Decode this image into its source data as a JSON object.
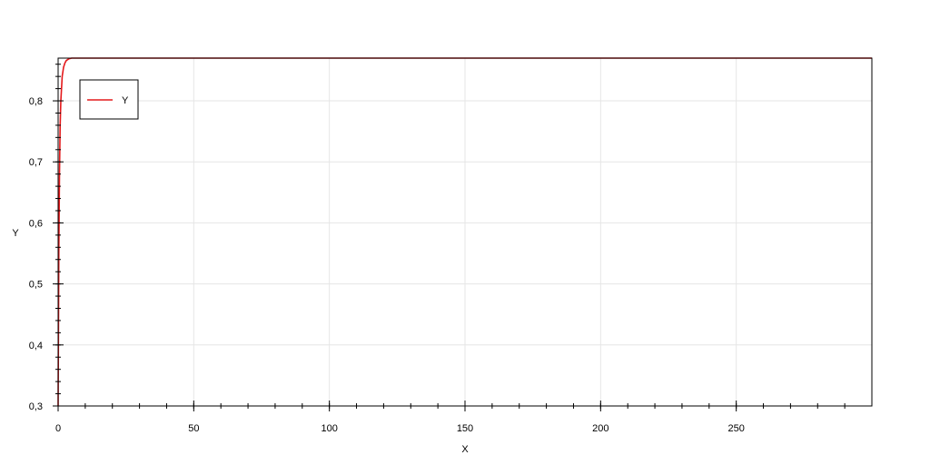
{
  "chart_data": {
    "type": "line",
    "xlabel": "X",
    "ylabel": "Y",
    "xlim": [
      0,
      300
    ],
    "ylim": [
      0.3,
      0.87
    ],
    "x_ticks": [
      0,
      50,
      100,
      150,
      200,
      250
    ],
    "x_tick_labels": [
      "0",
      "50",
      "100",
      "150",
      "200",
      "250"
    ],
    "x_minor_step": 10,
    "y_ticks": [
      0.3,
      0.4,
      0.5,
      0.6,
      0.7,
      0.8
    ],
    "y_tick_labels": [
      "0,3",
      "0,4",
      "0,5",
      "0,6",
      "0,7",
      "0,8"
    ],
    "y_minor_step": 0.02,
    "grid": true,
    "legend_position": "top-left",
    "series": [
      {
        "name": "Y",
        "color": "#e41a1c",
        "x": [
          0,
          0.25,
          0.5,
          0.75,
          1,
          1.5,
          2,
          2.5,
          3,
          4,
          5,
          10,
          50,
          100,
          150,
          200,
          250,
          300
        ],
        "values": [
          0.3,
          0.55,
          0.68,
          0.76,
          0.8,
          0.84,
          0.855,
          0.862,
          0.866,
          0.869,
          0.87,
          0.87,
          0.87,
          0.87,
          0.87,
          0.87,
          0.87,
          0.87
        ]
      }
    ]
  }
}
